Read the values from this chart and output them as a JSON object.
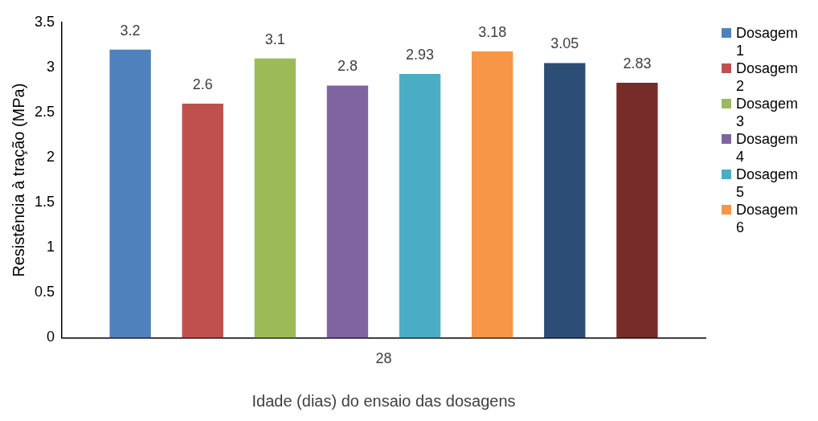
{
  "chart_data": {
    "type": "bar",
    "xlabel": "Idade (dias) do ensaio das dosagens",
    "ylabel": "Resistência à tração (MPa)",
    "categories": [
      "28"
    ],
    "series": [
      {
        "name": "Dosagem 1",
        "color": "#4f81bd",
        "values": [
          3.2
        ]
      },
      {
        "name": "Dosagem 2",
        "color": "#c0504d",
        "values": [
          2.6
        ]
      },
      {
        "name": "Dosagem 3",
        "color": "#9bbb59",
        "values": [
          3.1
        ]
      },
      {
        "name": "Dosagem 4",
        "color": "#8064a2",
        "values": [
          2.8
        ]
      },
      {
        "name": "Dosagem 5",
        "color": "#4bacc6",
        "values": [
          2.93
        ]
      },
      {
        "name": "Dosagem 6",
        "color": "#f79646",
        "values": [
          3.18
        ]
      },
      {
        "color": "#2c4d75",
        "values": [
          3.05
        ]
      },
      {
        "color": "#772c2a",
        "values": [
          2.83
        ]
      }
    ],
    "ylim": [
      0,
      3.5
    ],
    "yticks": [
      0,
      0.5,
      1,
      1.5,
      2,
      2.5,
      3,
      3.5
    ],
    "grid": false,
    "legend": "right",
    "data_labels": true
  }
}
